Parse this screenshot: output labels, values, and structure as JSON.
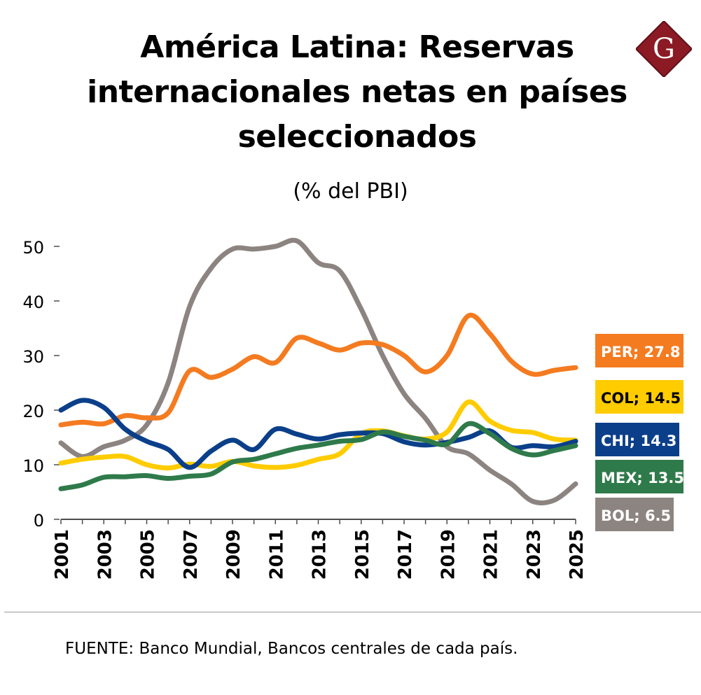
{
  "title": "América Latina: Reservas internacionales netas en países seleccionados",
  "subtitle": "(% del PBI)",
  "logo_letter": "G",
  "source": "FUENTE: Banco Mundial, Bancos centrales de cada país.",
  "colors": {
    "PER": "#f47b20",
    "COL": "#ffcc00",
    "CHI": "#0b3f8a",
    "MEX": "#2f7a4a",
    "BOL": "#8c8480",
    "logo": "#8b1a24",
    "axis": "#4d4d4d"
  },
  "chart_data": {
    "type": "line",
    "title": "América Latina: Reservas internacionales netas en países seleccionados",
    "ylabel": "% del PBI",
    "xlabel": "",
    "ylim": [
      0,
      50
    ],
    "yticks": [
      0,
      10,
      20,
      30,
      40,
      50
    ],
    "xlim": [
      2001,
      2025
    ],
    "xticks": [
      2001,
      2003,
      2005,
      2007,
      2009,
      2011,
      2013,
      2015,
      2017,
      2019,
      2021,
      2023,
      2025
    ],
    "x": [
      2001,
      2002,
      2003,
      2004,
      2005,
      2006,
      2007,
      2008,
      2009,
      2010,
      2011,
      2012,
      2013,
      2014,
      2015,
      2016,
      2017,
      2018,
      2019,
      2020,
      2021,
      2022,
      2023,
      2024,
      2025
    ],
    "series": [
      {
        "name": "PER",
        "label": "PER; 27.8",
        "values": [
          17.3,
          17.8,
          17.5,
          19.0,
          18.6,
          19.5,
          27.2,
          26.0,
          27.5,
          29.8,
          28.7,
          33.2,
          32.3,
          31.0,
          32.3,
          32.0,
          30.0,
          27.0,
          30.0,
          37.3,
          34.0,
          29.0,
          26.6,
          27.3,
          27.8
        ]
      },
      {
        "name": "COL",
        "label": "COL; 14.5",
        "values": [
          10.3,
          11.0,
          11.4,
          11.5,
          10.0,
          9.4,
          10.1,
          9.7,
          10.6,
          9.8,
          9.5,
          9.9,
          11.0,
          12.0,
          15.7,
          16.2,
          15.3,
          14.7,
          16.0,
          21.5,
          18.0,
          16.3,
          15.9,
          14.7,
          14.5
        ]
      },
      {
        "name": "CHI",
        "label": "CHI; 14.3",
        "values": [
          20.0,
          21.8,
          20.5,
          16.5,
          14.3,
          12.8,
          9.5,
          12.5,
          14.5,
          12.8,
          16.5,
          15.6,
          14.7,
          15.5,
          15.8,
          15.7,
          14.2,
          13.6,
          14.1,
          15.0,
          16.2,
          13.2,
          13.5,
          13.3,
          14.3
        ]
      },
      {
        "name": "MEX",
        "label": "MEX; 13.5",
        "values": [
          5.6,
          6.3,
          7.7,
          7.8,
          8.0,
          7.5,
          7.9,
          8.3,
          10.5,
          11.0,
          12.0,
          13.0,
          13.6,
          14.3,
          14.6,
          16.0,
          15.2,
          14.5,
          13.8,
          17.5,
          15.7,
          13.0,
          11.8,
          12.6,
          13.5
        ]
      },
      {
        "name": "BOL",
        "label": "BOL; 6.5",
        "values": [
          14.0,
          11.5,
          13.3,
          14.5,
          17.3,
          25.0,
          39.0,
          46.0,
          49.5,
          49.5,
          50.0,
          51.0,
          47.0,
          45.5,
          38.5,
          30.0,
          23.0,
          18.5,
          13.3,
          12.0,
          9.0,
          6.5,
          3.3,
          3.5,
          6.5
        ]
      }
    ],
    "legend_placement": "right, labels at line ends"
  }
}
